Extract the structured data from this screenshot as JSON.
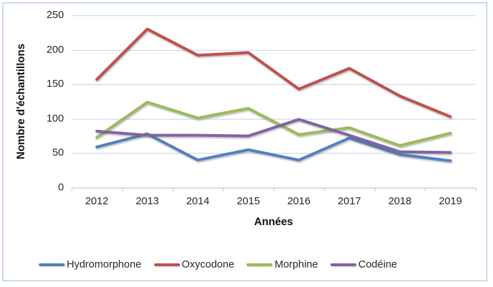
{
  "chart_data": {
    "type": "line",
    "title": "",
    "categories": [
      "2012",
      "2013",
      "2014",
      "2015",
      "2016",
      "2017",
      "2018",
      "2019"
    ],
    "series": [
      {
        "name": "Hydromorphone",
        "color": "#4F81BD",
        "values": [
          59,
          78,
          40,
          55,
          40,
          72,
          48,
          39
        ]
      },
      {
        "name": "Oxycodone",
        "color": "#C0504D",
        "values": [
          157,
          230,
          192,
          196,
          143,
          173,
          133,
          103
        ]
      },
      {
        "name": "Morphine",
        "color": "#9BBB59",
        "values": [
          73,
          124,
          101,
          115,
          77,
          87,
          61,
          79
        ]
      },
      {
        "name": "Codéine",
        "color": "#8064A2",
        "values": [
          82,
          76,
          76,
          75,
          99,
          76,
          52,
          51
        ]
      }
    ],
    "xlabel": "Années",
    "ylabel": "Nombre d'échantillons",
    "ylim": [
      0,
      250
    ],
    "y_ticks": [
      0,
      50,
      100,
      150,
      200,
      250
    ],
    "grid": true,
    "legend_position": "bottom"
  },
  "colors": {
    "gridline": "#cdd9ee",
    "axis_line": "#bfd3ec",
    "frame_border": "#c7dbef",
    "text": "#262626"
  }
}
